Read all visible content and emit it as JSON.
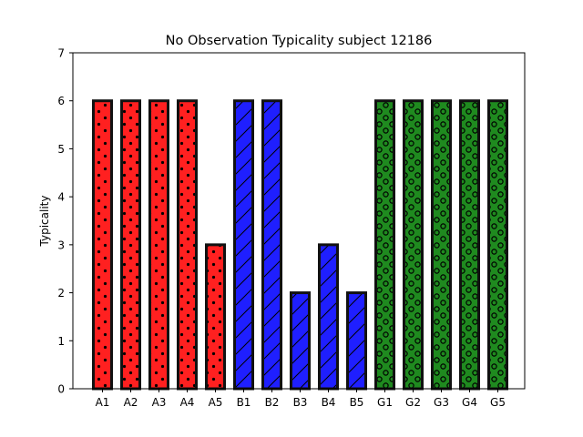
{
  "chart_data": {
    "type": "bar",
    "title": "No Observation Typicality subject 12186",
    "xlabel": "",
    "ylabel": "Typicality",
    "ylim": [
      0,
      7
    ],
    "yticks": [
      "0",
      "1",
      "2",
      "3",
      "4",
      "5",
      "6",
      "7"
    ],
    "grid": false,
    "categories": [
      "A1",
      "A2",
      "A3",
      "A4",
      "A5",
      "B1",
      "B2",
      "B3",
      "B4",
      "B5",
      "G1",
      "G2",
      "G3",
      "G4",
      "G5"
    ],
    "values": [
      6,
      6,
      6,
      6,
      3,
      6,
      6,
      2,
      3,
      2,
      6,
      6,
      6,
      6,
      6
    ],
    "bar_colors": [
      "#ff2020",
      "#ff2020",
      "#ff2020",
      "#ff2020",
      "#ff2020",
      "#1f1fff",
      "#1f1fff",
      "#1f1fff",
      "#1f1fff",
      "#1f1fff",
      "#1f8a1f",
      "#1f8a1f",
      "#1f8a1f",
      "#1f8a1f",
      "#1f8a1f"
    ],
    "bar_hatches": [
      "dots",
      "dots",
      "dots",
      "dots",
      "dots",
      "slash",
      "slash",
      "slash",
      "slash",
      "slash",
      "circles",
      "circles",
      "circles",
      "circles",
      "circles"
    ],
    "edge_color": "#111111"
  }
}
